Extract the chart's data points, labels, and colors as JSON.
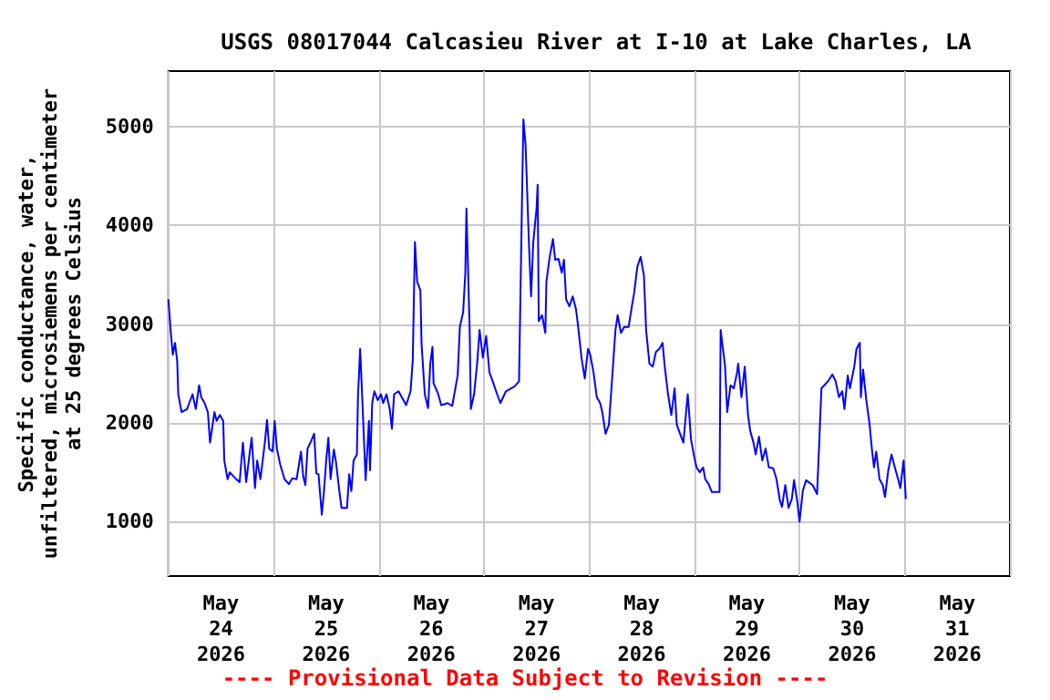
{
  "chart_data": {
    "type": "line",
    "title": "USGS 08017044 Calcasieu River at I-10 at Lake Charles, LA",
    "ylabel": "Specific conductance, water,\nunfiltered, microsiemens per centimeter\nat 25 degrees Celsius",
    "annotations": [
      "---- Provisional Data Subject to Revision ----"
    ],
    "color": "#0000ff",
    "grid": true,
    "xlim": [
      "2026-05-23T12:00",
      "2026-05-31T12:00"
    ],
    "xticks": [
      {
        "value": "2026-05-23T12:00",
        "label": null
      },
      {
        "value": "2026-05-24T00:00",
        "label": "May\n24\n2026"
      },
      {
        "value": "2026-05-24T12:00",
        "label": null
      },
      {
        "value": "2026-05-25T00:00",
        "label": "May\n25\n2026"
      },
      {
        "value": "2026-05-25T12:00",
        "label": null
      },
      {
        "value": "2026-05-26T00:00",
        "label": "May\n26\n2026"
      },
      {
        "value": "2026-05-26T12:00",
        "label": null
      },
      {
        "value": "2026-05-27T00:00",
        "label": "May\n27\n2026"
      },
      {
        "value": "2026-05-27T12:00",
        "label": null
      },
      {
        "value": "2026-05-28T00:00",
        "label": "May\n28\n2026"
      },
      {
        "value": "2026-05-28T12:00",
        "label": null
      },
      {
        "value": "2026-05-29T00:00",
        "label": "May\n29\n2026"
      },
      {
        "value": "2026-05-29T12:00",
        "label": null
      },
      {
        "value": "2026-05-30T00:00",
        "label": "May\n30\n2026"
      },
      {
        "value": "2026-05-30T12:00",
        "label": null
      },
      {
        "value": "2026-05-31T00:00",
        "label": "May\n31\n2026"
      },
      {
        "value": "2026-05-31T12:00",
        "label": null
      }
    ],
    "ylim": [
      450,
      5560
    ],
    "yticks": [
      1000,
      2000,
      3000,
      4000,
      5000
    ],
    "x": [
      "2026-05-23T12:00",
      "2026-05-23T12:30",
      "2026-05-23T13:00",
      "2026-05-23T13:30",
      "2026-05-23T14:00",
      "2026-05-23T14:15",
      "2026-05-23T15:00",
      "2026-05-23T16:15",
      "2026-05-23T16:45",
      "2026-05-23T17:30",
      "2026-05-23T18:15",
      "2026-05-23T19:00",
      "2026-05-23T19:30",
      "2026-05-23T20:15",
      "2026-05-23T21:00",
      "2026-05-23T21:30",
      "2026-05-23T22:30",
      "2026-05-23T23:00",
      "2026-05-23T23:45",
      "2026-05-24T00:30",
      "2026-05-24T00:45",
      "2026-05-24T01:30",
      "2026-05-24T02:00",
      "2026-05-24T03:15",
      "2026-05-24T04:15",
      "2026-05-24T05:00",
      "2026-05-24T05:45",
      "2026-05-24T06:30",
      "2026-05-24T07:00",
      "2026-05-24T07:45",
      "2026-05-24T08:15",
      "2026-05-24T09:00",
      "2026-05-24T10:00",
      "2026-05-24T10:30",
      "2026-05-24T11:00",
      "2026-05-24T11:45",
      "2026-05-24T12:15",
      "2026-05-24T12:45",
      "2026-05-24T13:30",
      "2026-05-24T14:30",
      "2026-05-24T15:30",
      "2026-05-24T16:15",
      "2026-05-24T17:15",
      "2026-05-24T18:15",
      "2026-05-24T18:45",
      "2026-05-24T19:15",
      "2026-05-24T19:45",
      "2026-05-24T20:30",
      "2026-05-24T21:15",
      "2026-05-24T21:45",
      "2026-05-24T22:15",
      "2026-05-24T23:00",
      "2026-05-24T23:30",
      "2026-05-25T00:00",
      "2026-05-25T00:30",
      "2026-05-25T01:00",
      "2026-05-25T01:45",
      "2026-05-25T02:15",
      "2026-05-25T03:00",
      "2026-05-25T03:30",
      "2026-05-25T04:45",
      "2026-05-25T05:15",
      "2026-05-25T05:45",
      "2026-05-25T06:15",
      "2026-05-25T07:00",
      "2026-05-25T07:15",
      "2026-05-25T07:45",
      "2026-05-25T08:15",
      "2026-05-25T09:00",
      "2026-05-25T09:45",
      "2026-05-25T10:00",
      "2026-05-25T10:30",
      "2026-05-25T11:00",
      "2026-05-25T11:45",
      "2026-05-25T12:30",
      "2026-05-25T13:00",
      "2026-05-25T13:45",
      "2026-05-25T14:30",
      "2026-05-25T15:00",
      "2026-05-25T15:30",
      "2026-05-25T16:30",
      "2026-05-25T17:15",
      "2026-05-25T18:15",
      "2026-05-25T19:15",
      "2026-05-25T19:45",
      "2026-05-25T20:15",
      "2026-05-25T20:45",
      "2026-05-25T21:30",
      "2026-05-25T21:45",
      "2026-05-25T22:30",
      "2026-05-25T23:15",
      "2026-05-25T23:45",
      "2026-05-26T00:15",
      "2026-05-26T00:30",
      "2026-05-26T01:30",
      "2026-05-26T02:15",
      "2026-05-26T03:45",
      "2026-05-26T04:45",
      "2026-05-26T06:00",
      "2026-05-26T06:30",
      "2026-05-26T07:15",
      "2026-05-26T07:45",
      "2026-05-26T08:00",
      "2026-05-26T08:45",
      "2026-05-26T09:00",
      "2026-05-26T09:45",
      "2026-05-26T10:30",
      "2026-05-26T11:00",
      "2026-05-26T11:45",
      "2026-05-26T12:30",
      "2026-05-26T13:15",
      "2026-05-26T14:00",
      "2026-05-26T15:00",
      "2026-05-26T15:45",
      "2026-05-26T17:00",
      "2026-05-26T19:00",
      "2026-05-26T20:00",
      "2026-05-26T20:15",
      "2026-05-26T20:45",
      "2026-05-26T21:00",
      "2026-05-26T21:30",
      "2026-05-26T22:15",
      "2026-05-26T22:45",
      "2026-05-26T23:15",
      "2026-05-27T00:00",
      "2026-05-27T00:15",
      "2026-05-27T00:30",
      "2026-05-27T01:15",
      "2026-05-27T02:00",
      "2026-05-27T02:15",
      "2026-05-27T03:00",
      "2026-05-27T03:45",
      "2026-05-27T04:15",
      "2026-05-27T05:00",
      "2026-05-27T05:45",
      "2026-05-27T06:15",
      "2026-05-27T06:45",
      "2026-05-27T07:30",
      "2026-05-27T08:15",
      "2026-05-27T09:00",
      "2026-05-27T09:30",
      "2026-05-27T10:15",
      "2026-05-27T11:00",
      "2026-05-27T11:45",
      "2026-05-27T12:15",
      "2026-05-27T13:00",
      "2026-05-27T13:45",
      "2026-05-27T14:30",
      "2026-05-27T15:00",
      "2026-05-27T15:45",
      "2026-05-27T16:30",
      "2026-05-27T17:15",
      "2026-05-27T18:00",
      "2026-05-27T18:30",
      "2026-05-27T19:15",
      "2026-05-27T20:00",
      "2026-05-27T21:00",
      "2026-05-27T21:45",
      "2026-05-27T22:15",
      "2026-05-27T23:00",
      "2026-05-27T23:45",
      "2026-05-28T00:30",
      "2026-05-28T01:00",
      "2026-05-28T01:45",
      "2026-05-28T02:30",
      "2026-05-28T03:15",
      "2026-05-28T04:00",
      "2026-05-28T04:45",
      "2026-05-28T05:15",
      "2026-05-28T06:00",
      "2026-05-28T06:45",
      "2026-05-28T07:30",
      "2026-05-28T08:00",
      "2026-05-28T08:45",
      "2026-05-28T09:30",
      "2026-05-28T10:00",
      "2026-05-28T10:30",
      "2026-05-28T11:15",
      "2026-05-28T12:00",
      "2026-05-28T12:30",
      "2026-05-28T13:15",
      "2026-05-28T14:00",
      "2026-05-28T14:30",
      "2026-05-28T15:15",
      "2026-05-28T16:00",
      "2026-05-28T17:45",
      "2026-05-28T18:00",
      "2026-05-28T19:00",
      "2026-05-28T19:30",
      "2026-05-28T20:15",
      "2026-05-28T21:00",
      "2026-05-28T21:45",
      "2026-05-28T22:00",
      "2026-05-28T22:45",
      "2026-05-28T23:30",
      "2026-05-29T00:15",
      "2026-05-29T00:45",
      "2026-05-29T01:30",
      "2026-05-29T02:00",
      "2026-05-29T02:45",
      "2026-05-29T03:30",
      "2026-05-29T04:15",
      "2026-05-29T05:00",
      "2026-05-29T06:00",
      "2026-05-29T06:45",
      "2026-05-29T07:30",
      "2026-05-29T08:00",
      "2026-05-29T08:45",
      "2026-05-29T09:30",
      "2026-05-29T10:15",
      "2026-05-29T10:45",
      "2026-05-29T11:30",
      "2026-05-29T12:00",
      "2026-05-29T12:45",
      "2026-05-29T13:30",
      "2026-05-29T15:00",
      "2026-05-29T16:00",
      "2026-05-29T16:30",
      "2026-05-29T17:00",
      "2026-05-29T18:30",
      "2026-05-29T19:30",
      "2026-05-29T20:15",
      "2026-05-29T21:00",
      "2026-05-29T21:45",
      "2026-05-29T22:15",
      "2026-05-29T23:00",
      "2026-05-29T23:30",
      "2026-05-30T00:30",
      "2026-05-30T01:00",
      "2026-05-30T01:45",
      "2026-05-30T02:00",
      "2026-05-30T02:30",
      "2026-05-30T03:15",
      "2026-05-30T04:00",
      "2026-05-30T04:30",
      "2026-05-30T05:00",
      "2026-05-30T05:30",
      "2026-05-30T06:15",
      "2026-05-30T07:00",
      "2026-05-30T07:30",
      "2026-05-30T08:15",
      "2026-05-30T09:00",
      "2026-05-30T09:45",
      "2026-05-30T10:30",
      "2026-05-30T11:00",
      "2026-05-30T11:45",
      "2026-05-30T12:15"
    ],
    "values": [
      3250,
      2940,
      2690,
      2810,
      2630,
      2290,
      2110,
      2140,
      2200,
      2290,
      2140,
      2380,
      2260,
      2200,
      2110,
      1800,
      2110,
      2020,
      2080,
      2020,
      1620,
      1430,
      1500,
      1440,
      1400,
      1800,
      1400,
      1680,
      1850,
      1340,
      1620,
      1430,
      1800,
      2030,
      1740,
      1710,
      2020,
      1740,
      1580,
      1430,
      1380,
      1440,
      1430,
      1710,
      1460,
      1370,
      1740,
      1810,
      1890,
      1490,
      1480,
      1070,
      1310,
      1620,
      1850,
      1430,
      1730,
      1600,
      1310,
      1140,
      1140,
      1480,
      1310,
      1620,
      1680,
      2260,
      2750,
      2230,
      1420,
      2020,
      1520,
      2200,
      2320,
      2230,
      2290,
      2200,
      2290,
      2140,
      1940,
      2290,
      2320,
      2260,
      2180,
      2320,
      2630,
      3830,
      3430,
      3340,
      2810,
      2290,
      2150,
      2600,
      2770,
      2400,
      2300,
      2180,
      2200,
      2170,
      2480,
      2970,
      3120,
      3520,
      4170,
      2910,
      2140,
      2290,
      2630,
      2940,
      2660,
      2880,
      2510,
      2420,
      2290,
      2200,
      2320,
      2370,
      2420,
      3090,
      4440,
      5070,
      4810,
      3830,
      3280,
      3830,
      4170,
      4410,
      3030,
      3090,
      2910,
      3430,
      3680,
      3860,
      3650,
      3660,
      3520,
      3650,
      3250,
      3180,
      3280,
      3150,
      2970,
      2660,
      2450,
      2750,
      2690,
      2510,
      2260,
      2200,
      2110,
      1890,
      1980,
      2450,
      2940,
      3090,
      2910,
      2970,
      2970,
      3180,
      3310,
      3580,
      3680,
      3490,
      2940,
      2600,
      2570,
      2720,
      2750,
      2810,
      2570,
      2290,
      2080,
      2350,
      1980,
      1890,
      1800,
      2050,
      2290,
      1830,
      1650,
      1550,
      1500,
      1550,
      1430,
      1380,
      1300,
      1300,
      2940,
      2580,
      2110,
      2380,
      2350,
      2510,
      2600,
      2260,
      2570,
      2080,
      1920,
      1800,
      1680,
      1860,
      1620,
      1740,
      1550,
      1540,
      1430,
      1220,
      1150,
      1370,
      1140,
      1230,
      1420,
      1200,
      1000,
      1310,
      1420,
      1370,
      1280,
      1800,
      2350,
      2420,
      2490,
      2420,
      2260,
      2320,
      2140,
      2480,
      2350,
      2570,
      2750,
      2810,
      2260,
      2540,
      2230,
      1980,
      1740,
      1550,
      1710,
      1430,
      1370,
      1250,
      1520,
      1680,
      1550,
      1430,
      1340,
      1620,
      1230
    ]
  }
}
